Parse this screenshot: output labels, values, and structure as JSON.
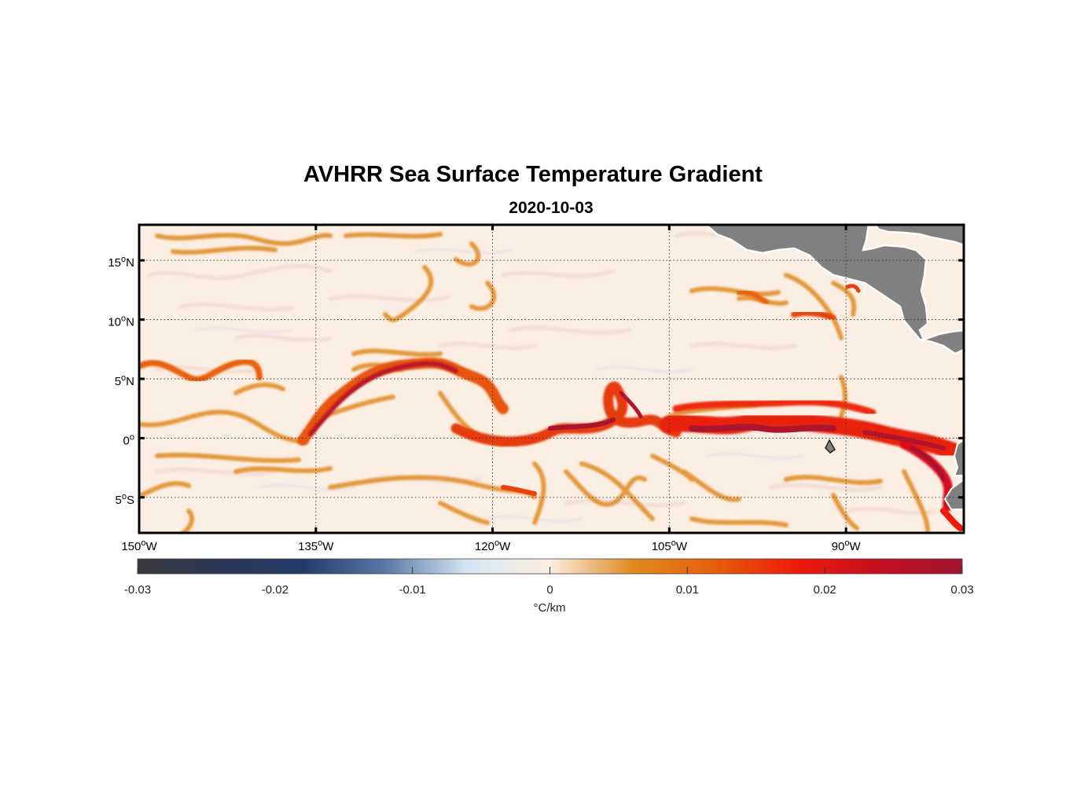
{
  "title": "AVHRR Sea Surface Temperature Gradient",
  "subtitle": "2020-10-03",
  "map": {
    "lon_range": [
      -150,
      -80
    ],
    "lat_range": [
      -8,
      18
    ],
    "lon_ticks": [
      {
        "value": -150,
        "deg": "150",
        "hemi": "W"
      },
      {
        "value": -135,
        "deg": "135",
        "hemi": "W"
      },
      {
        "value": -120,
        "deg": "120",
        "hemi": "W"
      },
      {
        "value": -105,
        "deg": "105",
        "hemi": "W"
      },
      {
        "value": -90,
        "deg": "90",
        "hemi": "W"
      }
    ],
    "lat_ticks": [
      {
        "value": 15,
        "deg": "15",
        "hemi": "N"
      },
      {
        "value": 10,
        "deg": "10",
        "hemi": "N"
      },
      {
        "value": 5,
        "deg": "5",
        "hemi": "N"
      },
      {
        "value": 0,
        "deg": "0",
        "hemi": ""
      },
      {
        "value": -5,
        "deg": "5",
        "hemi": "S"
      }
    ],
    "grid": true,
    "land_color": "#808080",
    "ocean_background": "#faece0"
  },
  "colorbar": {
    "min": -0.03,
    "max": 0.03,
    "ticks": [
      "-0.03",
      "-0.02",
      "-0.01",
      "0",
      "0.01",
      "0.02",
      "0.03"
    ],
    "unit": "°C/km",
    "colors": [
      "#3a3a3c",
      "#2b3556",
      "#243b68",
      "#5a78a6",
      "#d6e6f2",
      "#fbeee2",
      "#e08a22",
      "#e55e0a",
      "#ee1a0a",
      "#c40e20",
      "#9e1530"
    ]
  }
}
